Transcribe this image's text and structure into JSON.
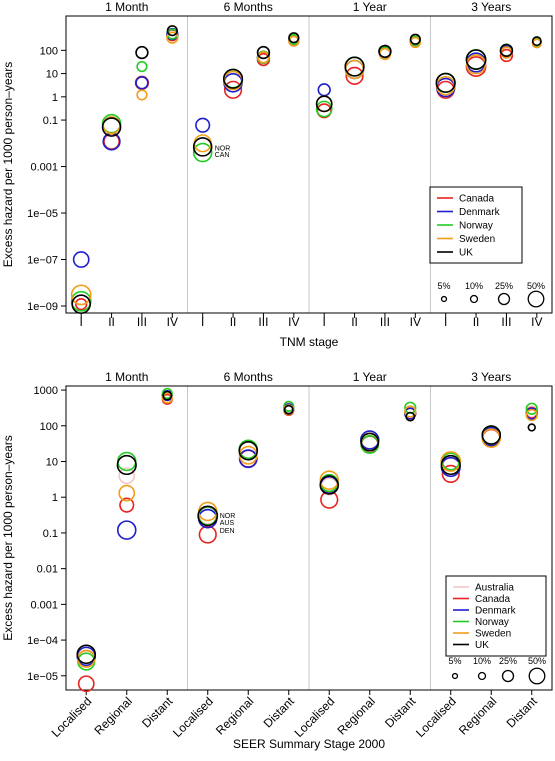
{
  "chart_data": [
    {
      "type": "scatter",
      "id": "tnm",
      "ylabel": "Excess hazard per 1000 person–years",
      "xlabel": "TNM stage",
      "yscale": "log",
      "ylim": [
        5e-10,
        3000
      ],
      "yticks": [
        {
          "v": 1e-09,
          "l": "1e−09"
        },
        {
          "v": 1e-07,
          "l": "1e−07"
        },
        {
          "v": 1e-05,
          "l": "1e−05"
        },
        {
          "v": 0.001,
          "l": "0.001"
        },
        {
          "v": 0.1,
          "l": "0.1"
        },
        {
          "v": 1,
          "l": "1"
        },
        {
          "v": 10,
          "l": "10"
        },
        {
          "v": 100,
          "l": "100"
        }
      ],
      "panels": [
        "1 Month",
        "6 Months",
        "1 Year",
        "3 Years"
      ],
      "categories": [
        "I",
        "II",
        "III",
        "IV"
      ],
      "series": [
        {
          "name": "Canada",
          "color": "#e8231f",
          "values": [
            [
              1.2e-09,
              0.012,
              4,
              450
            ],
            [
              null,
              2,
              40,
              250
            ],
            [
              0.25,
              8,
              70,
              220
            ],
            [
              2,
              20,
              60,
              200
            ]
          ],
          "sizes": [
            [
              0.05,
              0.1,
              0.07,
              0.05
            ],
            [
              null,
              0.12,
              0.06,
              0.04
            ],
            [
              0.08,
              0.12,
              0.05,
              0.04
            ],
            [
              0.12,
              0.16,
              0.06,
              0.03
            ]
          ]
        },
        {
          "name": "Denmark",
          "color": "#1f1fcc",
          "values": [
            [
              1e-07,
              0.012,
              4,
              500
            ],
            [
              0.06,
              4,
              50,
              300
            ],
            [
              2,
              15,
              90,
              250
            ],
            [
              2.5,
              30,
              90,
              230
            ]
          ],
          "sizes": [
            [
              0.1,
              0.12,
              0.06,
              0.05
            ],
            [
              0.08,
              0.14,
              0.06,
              0.04
            ],
            [
              0.06,
              0.14,
              0.06,
              0.04
            ],
            [
              0.14,
              0.15,
              0.06,
              0.03
            ]
          ]
        },
        {
          "name": "Norway",
          "color": "#22cc22",
          "values": [
            [
              1.6e-09,
              0.07,
              20,
              500
            ],
            [
              0.004,
              6,
              50,
              300
            ],
            [
              0.3,
              20,
              80,
              250
            ],
            [
              4,
              40,
              100,
              230
            ]
          ],
          "sizes": [
            [
              0.16,
              0.14,
              0.04,
              0.04
            ],
            [
              0.14,
              0.14,
              0.06,
              0.04
            ],
            [
              0.1,
              0.15,
              0.05,
              0.04
            ],
            [
              0.15,
              0.16,
              0.06,
              0.03
            ]
          ]
        },
        {
          "name": "Sweden",
          "color": "#f29e1a",
          "values": [
            [
              3e-09,
              0.06,
              1.2,
              350
            ],
            [
              0.01,
              5,
              50,
              250
            ],
            [
              0.5,
              15,
              70,
              220
            ],
            [
              3,
              25,
              80,
              200
            ]
          ],
          "sizes": [
            [
              0.16,
              0.12,
              0.04,
              0.05
            ],
            [
              0.12,
              0.14,
              0.05,
              0.04
            ],
            [
              0.1,
              0.14,
              0.05,
              0.04
            ],
            [
              0.14,
              0.15,
              0.05,
              0.03
            ]
          ]
        },
        {
          "name": "UK",
          "color": "#000000",
          "values": [
            [
              1.2e-09,
              0.05,
              80,
              700
            ],
            [
              0.007,
              6,
              80,
              350
            ],
            [
              0.5,
              20,
              90,
              300
            ],
            [
              4,
              40,
              100,
              250
            ]
          ],
          "sizes": [
            [
              0.14,
              0.14,
              0.06,
              0.04
            ],
            [
              0.14,
              0.15,
              0.06,
              0.04
            ],
            [
              0.1,
              0.15,
              0.06,
              0.04
            ],
            [
              0.15,
              0.16,
              0.06,
              0.03
            ]
          ]
        }
      ],
      "annotations": [
        {
          "panel": 1,
          "text": "NOR",
          "value": 0.0065
        },
        {
          "panel": 1,
          "text": "CAN",
          "value": 0.0035
        }
      ],
      "size_legend": [
        "5%",
        "10%",
        "25%",
        "50%"
      ],
      "legend": "inside bottom-right"
    },
    {
      "type": "scatter",
      "id": "seer",
      "ylabel": "Excess hazard per 1000 person–years",
      "xlabel": "SEER Summary Stage 2000",
      "yscale": "log",
      "ylim": [
        4e-06,
        1300
      ],
      "yticks": [
        {
          "v": 1e-05,
          "l": "1e−05"
        },
        {
          "v": 0.0001,
          "l": "1e−04"
        },
        {
          "v": 0.001,
          "l": "0.001"
        },
        {
          "v": 0.01,
          "l": "0.01"
        },
        {
          "v": 0.1,
          "l": "0.1"
        },
        {
          "v": 1,
          "l": "1"
        },
        {
          "v": 10,
          "l": "10"
        },
        {
          "v": 100,
          "l": "100"
        },
        {
          "v": 1000,
          "l": "1000"
        }
      ],
      "panels": [
        "1 Month",
        "6 Months",
        "1 Year",
        "3 Years"
      ],
      "categories": [
        "Localised",
        "Regional",
        "Distant"
      ],
      "series": [
        {
          "name": "Australia",
          "color": "#f4c6c6",
          "values": [
            [
              3e-05,
              4,
              700
            ],
            [
              0.3,
              20,
              320
            ],
            [
              2,
              40,
              250
            ],
            [
              7,
              50,
              250
            ]
          ],
          "sizes": [
            [
              0.1,
              0.1,
              0.04
            ],
            [
              0.12,
              0.13,
              0.04
            ],
            [
              0.12,
              0.13,
              0.05
            ],
            [
              0.14,
              0.14,
              0.05
            ]
          ]
        },
        {
          "name": "Canada",
          "color": "#e8231f",
          "values": [
            [
              6e-06,
              0.6,
              550
            ],
            [
              0.09,
              12,
              270
            ],
            [
              0.85,
              30,
              220
            ],
            [
              4.5,
              45,
              230
            ]
          ],
          "sizes": [
            [
              0.1,
              0.08,
              0.04
            ],
            [
              0.12,
              0.12,
              0.04
            ],
            [
              0.12,
              0.12,
              0.05
            ],
            [
              0.12,
              0.13,
              0.05
            ]
          ]
        },
        {
          "name": "Denmark",
          "color": "#1f1fcc",
          "values": [
            [
              3.5e-05,
              0.12,
              700
            ],
            [
              0.25,
              12,
              300
            ],
            [
              2.2,
              40,
              220
            ],
            [
              7,
              50,
              220
            ]
          ],
          "sizes": [
            [
              0.14,
              0.14,
              0.04
            ],
            [
              0.14,
              0.13,
              0.04
            ],
            [
              0.12,
              0.14,
              0.05
            ],
            [
              0.15,
              0.14,
              0.05
            ]
          ]
        },
        {
          "name": "Norway",
          "color": "#22cc22",
          "values": [
            [
              2.5e-05,
              10,
              800
            ],
            [
              0.3,
              22,
              350
            ],
            [
              2.5,
              30,
              320
            ],
            [
              10,
              55,
              300
            ]
          ],
          "sizes": [
            [
              0.12,
              0.14,
              0.04
            ],
            [
              0.14,
              0.14,
              0.04
            ],
            [
              0.12,
              0.13,
              0.05
            ],
            [
              0.12,
              0.14,
              0.05
            ]
          ]
        },
        {
          "name": "Sweden",
          "color": "#f29e1a",
          "values": [
            [
              3e-05,
              1.3,
              600
            ],
            [
              0.4,
              15,
              280
            ],
            [
              3,
              35,
              250
            ],
            [
              10,
              45,
              200
            ]
          ],
          "sizes": [
            [
              0.12,
              0.1,
              0.04
            ],
            [
              0.14,
              0.13,
              0.04
            ],
            [
              0.14,
              0.13,
              0.05
            ],
            [
              0.16,
              0.14,
              0.05
            ]
          ]
        },
        {
          "name": "UK",
          "color": "#000000",
          "values": [
            [
              4e-05,
              8,
              700
            ],
            [
              0.3,
              20,
              280
            ],
            [
              2.2,
              35,
              180
            ],
            [
              8,
              55,
              90
            ]
          ],
          "sizes": [
            [
              0.14,
              0.15,
              0.03
            ],
            [
              0.16,
              0.14,
              0.03
            ],
            [
              0.14,
              0.13,
              0.03
            ],
            [
              0.15,
              0.14,
              0.02
            ]
          ]
        }
      ],
      "annotations": [
        {
          "panel": 1,
          "text": "NOR",
          "value": 0.32
        },
        {
          "panel": 1,
          "text": "AUS",
          "value": 0.2
        },
        {
          "panel": 1,
          "text": "DEN",
          "value": 0.12
        }
      ],
      "size_legend": [
        "5%",
        "10%",
        "25%",
        "50%"
      ],
      "legend": "inside bottom-right"
    }
  ]
}
